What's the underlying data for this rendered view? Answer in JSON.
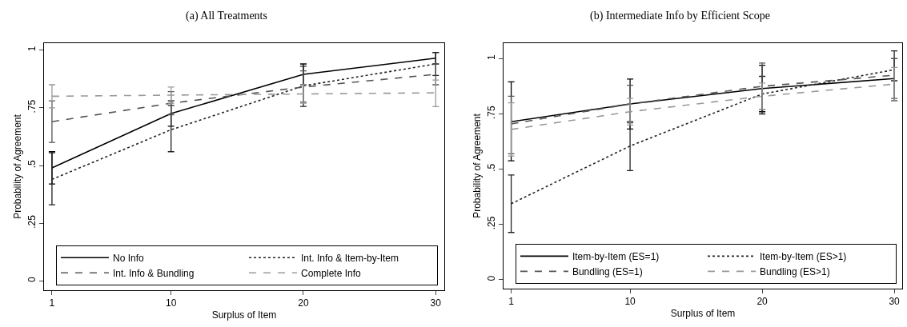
{
  "chart_data": [
    {
      "type": "line",
      "title": "(a) All Treatments",
      "xlabel": "Surplus of Item",
      "ylabel": "Probability of Agreement",
      "x": [
        1,
        10,
        20,
        30
      ],
      "xlim": [
        0.4,
        30.65
      ],
      "xticks": [
        1,
        10,
        20,
        30
      ],
      "ylim": [
        -0.04,
        1.03
      ],
      "yticks": [
        {
          "value": 0,
          "label": "0"
        },
        {
          "value": 0.25,
          "label": ".25"
        },
        {
          "value": 0.5,
          "label": ".5"
        },
        {
          "value": 0.75,
          "label": ".75"
        },
        {
          "value": 1,
          "label": "1"
        }
      ],
      "grid": false,
      "legend": "bottom",
      "marker": "none",
      "series": [
        {
          "name": "No Info",
          "color": "#000000",
          "line_style": "solid",
          "values": [
            0.49,
            0.725,
            0.895,
            0.965
          ],
          "errors": [
            [
              0.42,
              0.56
            ],
            [
              0.67,
              0.78
            ],
            [
              0.85,
              0.94
            ],
            [
              0.94,
              0.99
            ]
          ]
        },
        {
          "name": "Int. Info & Item-by-Item",
          "color": "#222222",
          "line_style": "dotted",
          "values": [
            0.44,
            0.655,
            0.845,
            0.94
          ],
          "errors": [
            [
              0.33,
              0.555
            ],
            [
              0.56,
              0.76
            ],
            [
              0.756,
              0.93
            ],
            [
              0.89,
              0.99
            ]
          ]
        },
        {
          "name": "Int. Info & Bundling",
          "color": "#555555",
          "line_style": "dashed",
          "values": [
            0.69,
            0.77,
            0.84,
            0.895
          ],
          "errors": [
            [
              0.6,
              0.78
            ],
            [
              0.72,
              0.82
            ],
            [
              0.775,
              0.91
            ],
            [
              0.85,
              0.94
            ]
          ]
        },
        {
          "name": "Complete Info",
          "color": "#999999",
          "line_style": "dashed",
          "values": [
            0.8,
            0.805,
            0.81,
            0.815
          ],
          "errors": [
            [
              0.75,
              0.85
            ],
            [
              0.77,
              0.84
            ],
            [
              0.77,
              0.85
            ],
            [
              0.755,
              0.87
            ]
          ]
        }
      ]
    },
    {
      "type": "line",
      "title": "(b) Intermediate Info by Efficient Scope",
      "xlabel": "Surplus of Item",
      "ylabel": "Probability of Agreement",
      "x": [
        1,
        10,
        20,
        30
      ],
      "xlim": [
        0.42,
        30.6
      ],
      "xticks": [
        1,
        10,
        20,
        30
      ],
      "ylim": [
        -0.04,
        1.07
      ],
      "yticks": [
        {
          "value": 0,
          "label": "0"
        },
        {
          "value": 0.25,
          "label": ".25"
        },
        {
          "value": 0.5,
          "label": ".5"
        },
        {
          "value": 0.75,
          "label": ".75"
        },
        {
          "value": 1,
          "label": "1"
        }
      ],
      "grid": false,
      "legend": "bottom",
      "marker": "none",
      "series": [
        {
          "name": "Item-by-Item (ES=1)",
          "color": "#000000",
          "line_style": "solid",
          "values": [
            0.715,
            0.795,
            0.865,
            0.91
          ],
          "errors": [
            [
              0.538,
              0.895
            ],
            [
              0.682,
              0.908
            ],
            [
              0.76,
              0.97
            ],
            [
              0.81,
              1.0
            ]
          ]
        },
        {
          "name": "Item-by-Item (ES>1)",
          "color": "#222222",
          "line_style": "dotted",
          "values": [
            0.344,
            0.605,
            0.84,
            0.95
          ],
          "errors": [
            [
              0.214,
              0.474
            ],
            [
              0.494,
              0.715
            ],
            [
              0.75,
              0.92
            ],
            [
              0.9,
              1.035
            ]
          ]
        },
        {
          "name": "Bundling (ES=1)",
          "color": "#555555",
          "line_style": "dashed",
          "values": [
            0.705,
            0.795,
            0.875,
            0.925
          ],
          "errors": [
            [
              0.57,
              0.83
            ],
            [
              0.71,
              0.88
            ],
            [
              0.77,
              0.98
            ],
            [
              0.82,
              1.0
            ]
          ]
        },
        {
          "name": "Bundling (ES>1)",
          "color": "#999999",
          "line_style": "dashed",
          "values": [
            0.68,
            0.76,
            0.83,
            0.885
          ],
          "errors": [
            [
              0.56,
              0.8
            ],
            [
              0.7,
              0.82
            ],
            [
              0.77,
              0.89
            ],
            [
              0.81,
              0.96
            ]
          ]
        }
      ]
    }
  ]
}
